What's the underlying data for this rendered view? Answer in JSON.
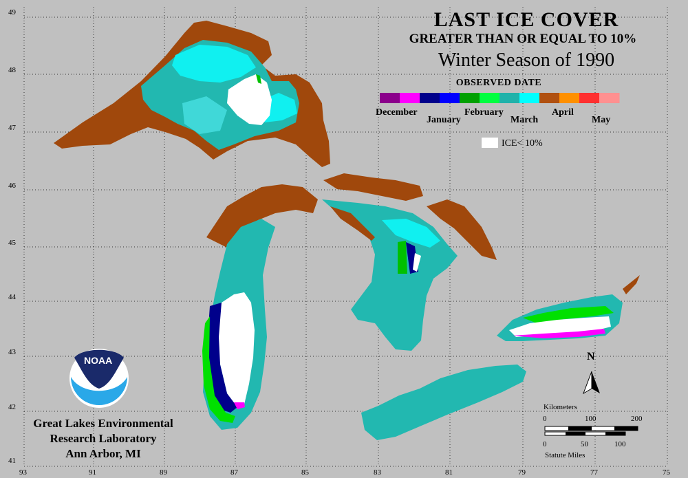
{
  "title": {
    "line1": "LAST ICE COVER",
    "line2": "GREATER THAN OR EQUAL TO 10%",
    "line3": "Winter Season of 1990"
  },
  "legend": {
    "heading": "OBSERVED DATE",
    "months": [
      "December",
      "January",
      "February",
      "March",
      "April",
      "May"
    ],
    "colors": [
      "#8b008b",
      "#ff00ff",
      "#00008b",
      "#0000ff",
      "#00a000",
      "#00ff40",
      "#20b2aa",
      "#00ffff",
      "#b05010",
      "#ff9000",
      "#ff3030",
      "#ff9090"
    ],
    "ice_label": "ICE< 10%",
    "ice_color": "#ffffff"
  },
  "axes": {
    "lat_labels": [
      "49",
      "48",
      "47",
      "46",
      "45",
      "44",
      "43",
      "42",
      "41"
    ],
    "lon_labels": [
      "93",
      "91",
      "89",
      "87",
      "85",
      "83",
      "81",
      "79",
      "77",
      "75"
    ]
  },
  "north_label": "N",
  "scale": {
    "km_title": "Kilometers",
    "km_ticks": [
      "0",
      "100",
      "200"
    ],
    "mi_ticks": [
      "0",
      "50",
      "100"
    ],
    "mi_title": "Statute Miles"
  },
  "lab": {
    "line1": "Great Lakes Environmental",
    "line2": "Research Laboratory",
    "line3": "Ann Arbor, MI"
  },
  "logo_text": "NOAA",
  "map_colors": {
    "april": "#a0480c",
    "march": "#22b8b0",
    "march_light": "#40d8d8",
    "march_bright": "#10f0f0",
    "january": "#000090",
    "february": "#20e020",
    "december": "#ff00ff",
    "ice_lt_10": "#ffffff"
  }
}
